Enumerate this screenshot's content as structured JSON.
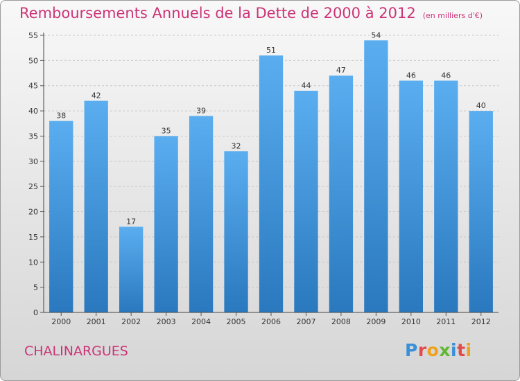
{
  "title": "Remboursements Annuels de la Dette de 2000 à 2012",
  "unit_note": "(en milliers d'€)",
  "commune": "CHALINARGUES",
  "logo": {
    "letters": [
      "P",
      "r",
      "o",
      "x",
      "i",
      "t",
      "i"
    ],
    "colors": [
      "#3a8fd8",
      "#e24b4b",
      "#f0a11a",
      "#5fb832",
      "#3a8fd8",
      "#e24b4b",
      "#f0a11a"
    ]
  },
  "colors": {
    "title": "#cc3377",
    "bar": "#3d97dc",
    "axis": "#333333"
  },
  "chart_data": {
    "type": "bar",
    "categories": [
      "2000",
      "2001",
      "2002",
      "2003",
      "2004",
      "2005",
      "2006",
      "2007",
      "2008",
      "2009",
      "2010",
      "2011",
      "2012"
    ],
    "values": [
      38,
      42,
      17,
      35,
      39,
      32,
      51,
      44,
      47,
      54,
      46,
      46,
      40
    ],
    "ylim": [
      0,
      55
    ],
    "yticks": [
      0,
      5,
      10,
      15,
      20,
      25,
      30,
      35,
      40,
      45,
      50,
      55
    ],
    "grid": true,
    "data_labels": true
  }
}
